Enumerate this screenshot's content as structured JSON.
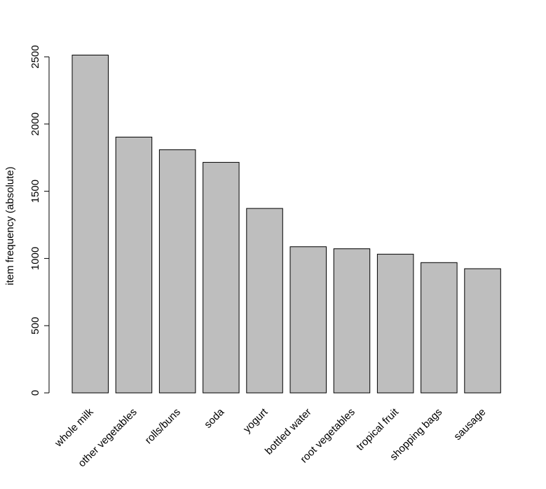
{
  "chart_data": {
    "type": "bar",
    "title": "",
    "xlabel": "",
    "ylabel": "item frequency (absolute)",
    "categories": [
      "whole milk",
      "other vegetables",
      "rolls/buns",
      "soda",
      "yogurt",
      "bottled water",
      "root vegetables",
      "tropical fruit",
      "shopping bags",
      "sausage"
    ],
    "values": [
      2513,
      1903,
      1809,
      1715,
      1372,
      1087,
      1072,
      1032,
      969,
      924
    ],
    "ylim": [
      0,
      2500
    ],
    "yticks": [
      0,
      500,
      1000,
      1500,
      2000,
      2500
    ],
    "grid": false,
    "legend": "none",
    "colors": {
      "bar_fill": "#bebebe",
      "bar_stroke": "#000000",
      "axis": "#000000"
    }
  }
}
